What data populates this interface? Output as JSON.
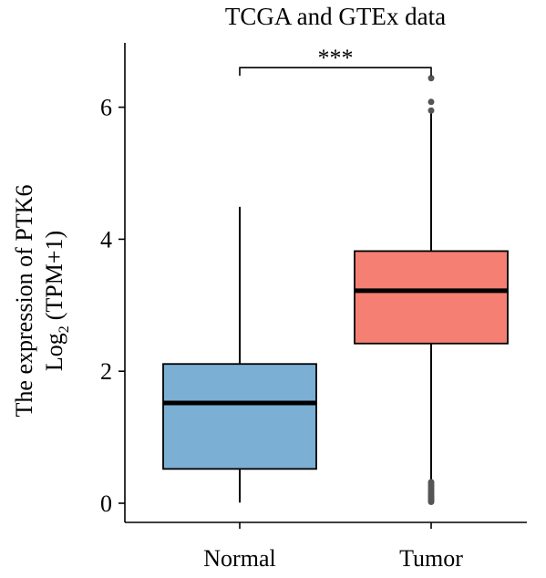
{
  "chart_data": {
    "type": "box",
    "title": "TCGA and GTEx data",
    "ylabel_line1": "The expression of PTK6",
    "ylabel_line2_prefix": "Log",
    "ylabel_line2_sub": "2",
    "ylabel_line2_suffix": "(TPM+1)",
    "categories": [
      "Normal",
      "Tumor"
    ],
    "ylim": [
      -0.25,
      7.0
    ],
    "yticks": [
      0,
      2,
      4,
      6
    ],
    "yticklabels": [
      "0",
      "2",
      "4",
      "6"
    ],
    "boxes": [
      {
        "name": "Normal",
        "color": "#7bafd4",
        "q1": 0.52,
        "median": 1.52,
        "q3": 2.11,
        "whisker_low": 0.01,
        "whisker_high": 4.49,
        "outliers": []
      },
      {
        "name": "Tumor",
        "color": "#f47f72",
        "q1": 2.42,
        "median": 3.22,
        "q3": 3.82,
        "whisker_low": 0.35,
        "whisker_high": 5.92,
        "outliers": [
          6.44,
          6.08,
          5.95,
          0.32,
          0.29,
          0.26,
          0.23,
          0.2,
          0.17,
          0.15,
          0.12,
          0.1,
          0.08,
          0.06,
          0.04,
          0.02
        ]
      }
    ],
    "significance": {
      "label": "***",
      "between": [
        "Normal",
        "Tumor"
      ],
      "y": 6.6
    }
  }
}
